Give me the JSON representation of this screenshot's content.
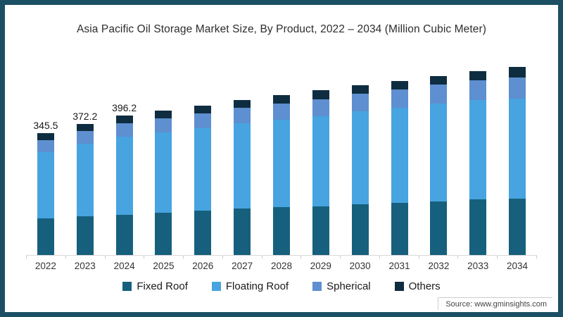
{
  "chart_data": {
    "type": "bar",
    "stacked": true,
    "title": "Asia Pacific Oil Storage Market Size, By Product, 2022 – 2034 (Million Cubic Meter)",
    "categories": [
      "2022",
      "2023",
      "2024",
      "2025",
      "2026",
      "2027",
      "2028",
      "2029",
      "2030",
      "2031",
      "2032",
      "2033",
      "2034"
    ],
    "series": [
      {
        "name": "Fixed Roof",
        "color": "#16607d",
        "values": [
          104,
          110,
          115,
          121,
          127,
          133,
          136,
          139,
          145,
          149,
          152,
          159,
          160
        ]
      },
      {
        "name": "Floating Roof",
        "color": "#47a4e0",
        "values": [
          187.5,
          206.2,
          221.2,
          227,
          234,
          241,
          249,
          255,
          263,
          270,
          278,
          281,
          285
        ]
      },
      {
        "name": "Spherical",
        "color": "#5e8fd0",
        "values": [
          34,
          36,
          38,
          40,
          42,
          44,
          46,
          48,
          50,
          52,
          54,
          56,
          60
        ]
      },
      {
        "name": "Others",
        "color": "#0f2d40",
        "values": [
          20,
          20,
          22,
          22,
          22,
          22,
          24,
          26,
          24,
          24,
          24,
          26,
          30
        ]
      }
    ],
    "totals": [
      345.5,
      372.2,
      396.2,
      410,
      425,
      440,
      455,
      468,
      482,
      495,
      508,
      522,
      535
    ],
    "value_labels": [
      "345.5",
      "372.2",
      "396.2",
      "",
      "",
      "",
      "",
      "",
      "",
      "",
      "",
      "",
      ""
    ],
    "xlabel": "",
    "ylabel": "",
    "ylim": [
      0,
      560
    ],
    "y_axis_visible": false,
    "grid": false,
    "legend_position": "bottom"
  },
  "source": {
    "label": "Source: www.gminsights.com"
  },
  "colors": {
    "frame_border": "#1b4f63",
    "axis_line": "#d8d8d8",
    "tick": "#c9c9c9",
    "title_text": "#2d2d2d",
    "label_text": "#1a1a1a"
  }
}
